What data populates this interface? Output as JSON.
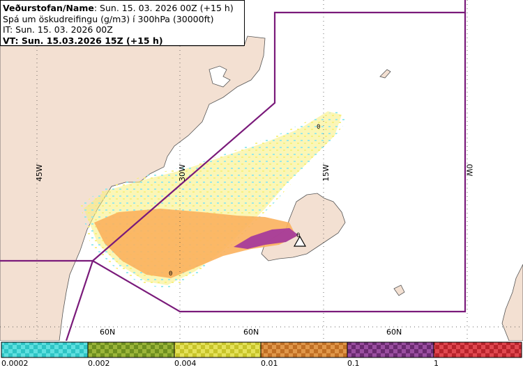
{
  "info_box": {
    "line1_label": "Veðurstofan/Name",
    "line1_value": ": Sun. 15. 03. 2026 00Z (+15 h)",
    "line2": "Spá um öskudreifingu (g/m3) í 300hPa (30000ft)",
    "line3": "IT: Sun. 15. 03. 2026 00Z",
    "line4": "VT: Sun. 15.03.2026 15Z (+15 h)"
  },
  "grid_labels": {
    "lon_45w": "45W",
    "lon_30w": "30W",
    "lon_15w": "15W",
    "lon_0w": "0W",
    "lat_a": "60N",
    "lat_b": "60N",
    "lat_c": "60N"
  },
  "contour_labels": [
    "0",
    "0",
    "0"
  ],
  "legend": {
    "bins": [
      {
        "color": "#2ec4c4",
        "alt": "#5fe0e0",
        "label": "0.0002"
      },
      {
        "color": "#6e8f1f",
        "alt": "#9bb53a",
        "label": "0.002"
      },
      {
        "color": "#c7c42a",
        "alt": "#e5e25a",
        "label": "0.004"
      },
      {
        "color": "#c06f24",
        "alt": "#e0974a",
        "label": "0.01"
      },
      {
        "color": "#6a2a70",
        "alt": "#9a4ea0",
        "label": "0.1"
      },
      {
        "color": "#b8232b",
        "alt": "#e04850",
        "label": "1"
      }
    ]
  },
  "colors": {
    "land": "#f3e0d2",
    "sea": "#ffffff",
    "boundary": "#7a1a7a",
    "ash_cyan": "#8ee8ee",
    "ash_yellow": "#f7ef7a",
    "ash_orange": "#fbb15d",
    "ash_magenta": "#a2359c"
  },
  "icons": [
    "volcano-triangle-icon"
  ]
}
